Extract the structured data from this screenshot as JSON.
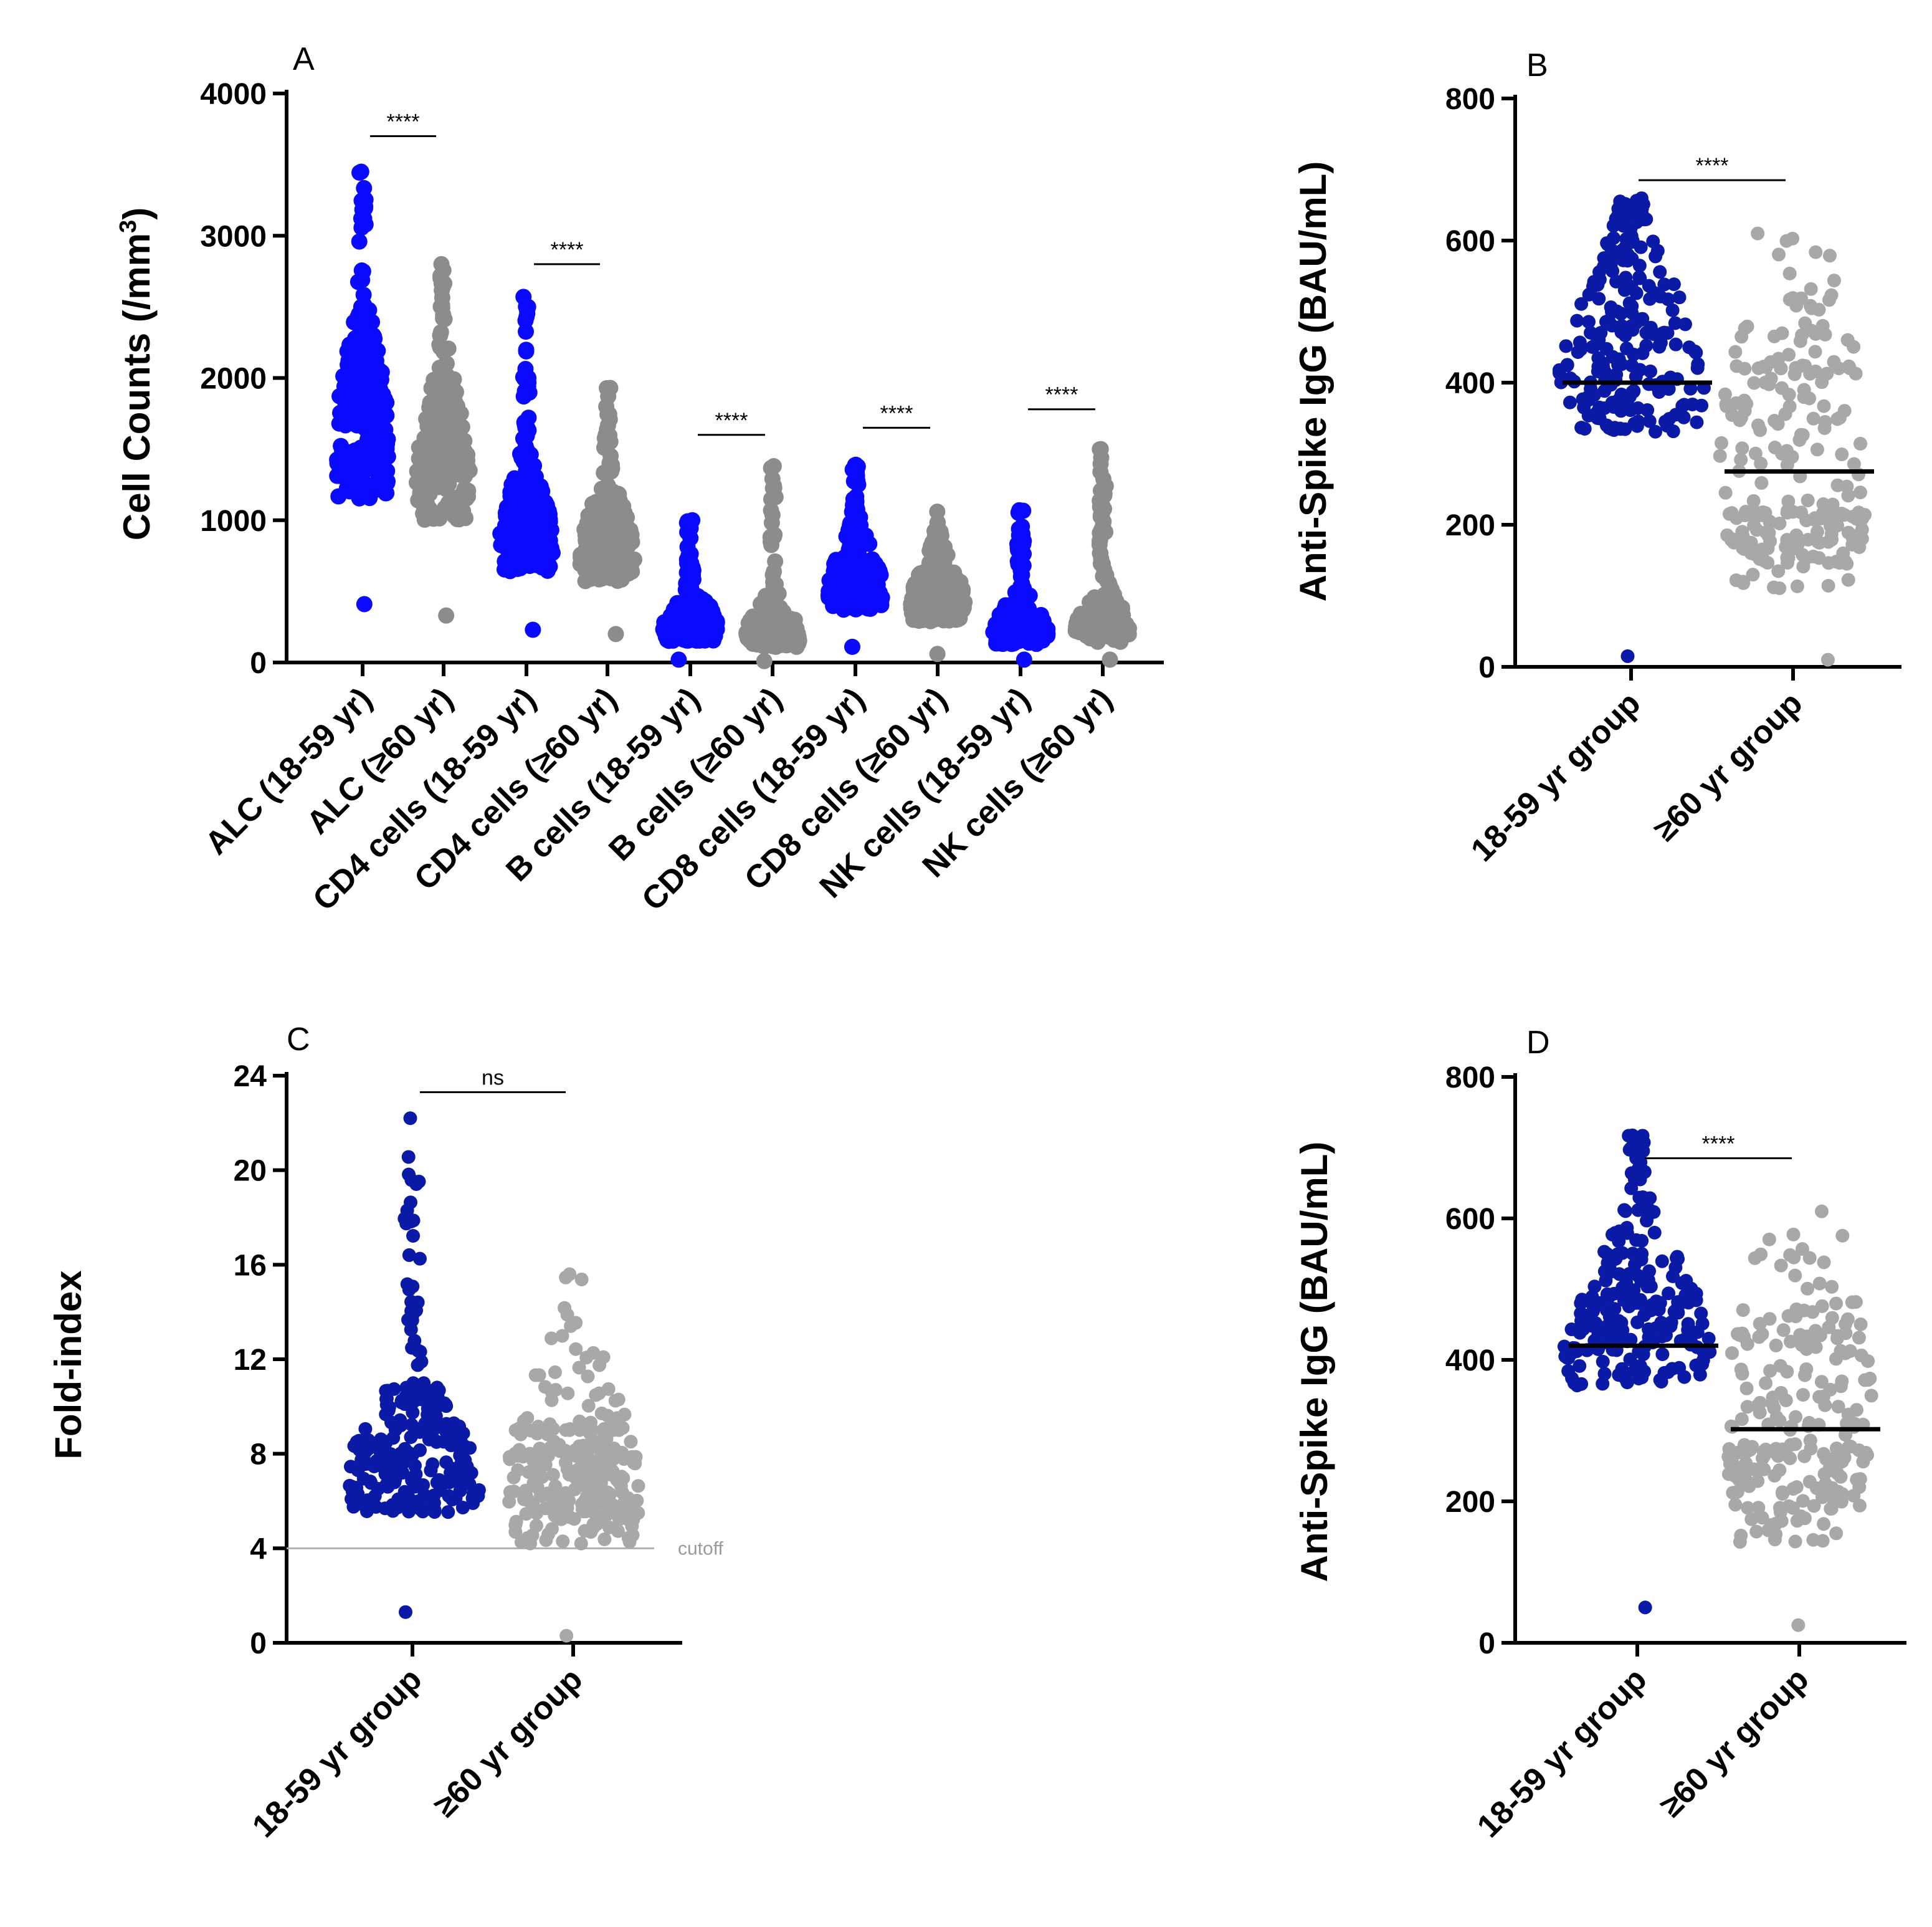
{
  "colors": {
    "blue_bright": "#0a0aff",
    "blue_navy": "#0a1aa6",
    "gray": "#8c8c8c",
    "gray_light": "#a8a8a8",
    "axis": "#000000",
    "reference_line": "#b0b0b0"
  },
  "chart_data": [
    {
      "panel": "A",
      "type": "scatter",
      "subtype": "dot-plot (beeswarm)",
      "title": "",
      "ylabel": "Cell Counts (/mm",
      "ylabel_superscript": "3",
      "ylabel_suffix": ")",
      "ylim": [
        0,
        4000
      ],
      "yticks": [
        "0",
        "1000",
        "2000",
        "3000",
        "4000"
      ],
      "categories": [
        "ALC (18-59 yr)",
        "ALC (≥60 yr)",
        "CD4 cells (18-59 yr)",
        "CD4 cells (≥60 yr)",
        "B cells (18-59 yr)",
        "B cells (≥60 yr)",
        "CD8 cells (18-59 yr)",
        "CD8 cells (≥60 yr)",
        "NK cells (18-59 yr)",
        "NK cells (≥60 yr)"
      ],
      "series": [
        {
          "values_summary": {
            "min": 410,
            "q1": 1150,
            "median": 1480,
            "q3": 1850,
            "max": 3450
          },
          "color": "blue_bright"
        },
        {
          "values_summary": {
            "min": 330,
            "q1": 1000,
            "median": 1280,
            "q3": 1550,
            "max": 2800
          },
          "color": "gray"
        },
        {
          "values_summary": {
            "min": 230,
            "q1": 640,
            "median": 820,
            "q3": 1050,
            "max": 2570
          },
          "color": "blue_bright"
        },
        {
          "values_summary": {
            "min": 200,
            "q1": 570,
            "median": 740,
            "q3": 940,
            "max": 1930
          },
          "color": "gray"
        },
        {
          "values_summary": {
            "min": 20,
            "q1": 150,
            "median": 240,
            "q3": 360,
            "max": 1000
          },
          "color": "blue_bright"
        },
        {
          "values_summary": {
            "min": 10,
            "q1": 110,
            "median": 190,
            "q3": 290,
            "max": 1380
          },
          "color": "gray"
        },
        {
          "values_summary": {
            "min": 110,
            "q1": 370,
            "median": 500,
            "q3": 680,
            "max": 1390
          },
          "color": "blue_bright"
        },
        {
          "values_summary": {
            "min": 60,
            "q1": 290,
            "median": 410,
            "q3": 560,
            "max": 1060
          },
          "color": "gray"
        },
        {
          "values_summary": {
            "min": 20,
            "q1": 130,
            "median": 210,
            "q3": 320,
            "max": 1070
          },
          "color": "blue_bright"
        },
        {
          "values_summary": {
            "min": 20,
            "q1": 140,
            "median": 230,
            "q3": 340,
            "max": 1500
          },
          "color": "gray"
        }
      ],
      "significance": [
        {
          "between": [
            0,
            1
          ],
          "label": "****",
          "y": 3700
        },
        {
          "between": [
            2,
            3
          ],
          "label": "****",
          "y": 2800
        },
        {
          "between": [
            4,
            5
          ],
          "label": "****",
          "y": 1600
        },
        {
          "between": [
            6,
            7
          ],
          "label": "****",
          "y": 1650
        },
        {
          "between": [
            8,
            9
          ],
          "label": "****",
          "y": 1780
        }
      ]
    },
    {
      "panel": "B",
      "type": "scatter",
      "subtype": "dot-plot (beeswarm)",
      "title": "",
      "ylabel": "Anti-Spike IgG (BAU/mL)",
      "ylim": [
        0,
        800
      ],
      "yticks": [
        "0",
        "200",
        "400",
        "600",
        "800"
      ],
      "categories": [
        "18-59 yr group",
        "≥60 yr group"
      ],
      "series": [
        {
          "values_summary": {
            "min": 15,
            "q1": 330,
            "median": 400,
            "q3": 470,
            "max": 630
          },
          "mean": 400,
          "color": "blue_navy"
        },
        {
          "values_summary": {
            "min": 10,
            "q1": 110,
            "median": 270,
            "q3": 420,
            "max": 610
          },
          "mean": 275,
          "color": "gray_light"
        }
      ],
      "significance": [
        {
          "between": [
            0,
            1
          ],
          "label": "****",
          "y": 685
        }
      ]
    },
    {
      "panel": "C",
      "type": "scatter",
      "subtype": "dot-plot (beeswarm)",
      "title": "",
      "ylabel": "Fold-index",
      "ylim": [
        0,
        24
      ],
      "yticks": [
        "0",
        "4",
        "8",
        "12",
        "16",
        "20",
        "24"
      ],
      "categories": [
        "18-59 yr group",
        "≥60 yr group"
      ],
      "series": [
        {
          "values_summary": {
            "min": 1.3,
            "q1": 5.5,
            "median": 6.8,
            "q3": 8.5,
            "max": 22.2
          },
          "color": "blue_navy"
        },
        {
          "values_summary": {
            "min": 0.3,
            "q1": 4.2,
            "median": 6.5,
            "q3": 9.0,
            "max": 15.6
          },
          "color": "gray_light"
        }
      ],
      "reference_line": {
        "y": 4,
        "label": "cutoff"
      },
      "significance": [
        {
          "between": [
            0,
            1
          ],
          "label": "ns",
          "y": 23.3
        }
      ]
    },
    {
      "panel": "D",
      "type": "scatter",
      "subtype": "dot-plot (beeswarm)",
      "title": "",
      "ylabel": "Anti-Spike IgG (BAU/mL)",
      "ylim": [
        0,
        800
      ],
      "yticks": [
        "0",
        "200",
        "400",
        "600",
        "800"
      ],
      "categories": [
        "18-59 yr group",
        "≥60 yr group"
      ],
      "series": [
        {
          "values_summary": {
            "min": 50,
            "q1": 360,
            "median": 420,
            "q3": 480,
            "max": 630
          },
          "mean": 420,
          "color": "blue_navy"
        },
        {
          "values_summary": {
            "min": 25,
            "q1": 140,
            "median": 300,
            "q3": 430,
            "max": 610
          },
          "mean": 302,
          "color": "gray_light"
        }
      ],
      "significance": [
        {
          "between": [
            0,
            1
          ],
          "label": "****",
          "y": 685
        }
      ]
    }
  ]
}
